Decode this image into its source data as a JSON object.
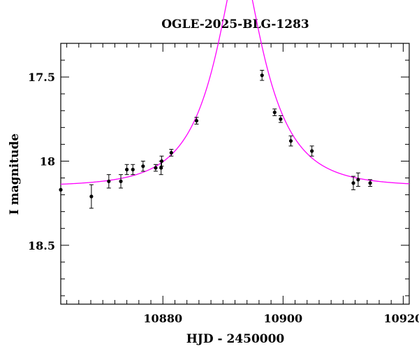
{
  "chart_data": {
    "type": "scatter",
    "title": "OGLE-2025-BLG-1283",
    "xlabel": "HJD - 2450000",
    "ylabel": "I magnitude",
    "xlim": [
      10863,
      10921
    ],
    "ylim": [
      18.85,
      17.3
    ],
    "y_inverted": true,
    "x_ticks": [
      10880,
      10900,
      10920
    ],
    "y_ticks": [
      17.5,
      18,
      18.5
    ],
    "x_tick_labels": [
      "10880",
      "10900",
      "10920"
    ],
    "y_tick_labels": [
      "17.5",
      "18",
      "18.5"
    ],
    "x_minor_step": 2,
    "y_minor_step": 0.1,
    "grid": false,
    "legend": "none",
    "series": [
      {
        "kind": "points",
        "color": "#000000",
        "points": [
          {
            "x": 10863.0,
            "y": 18.17,
            "err": 0.0
          },
          {
            "x": 10868.1,
            "y": 18.21,
            "err": 0.07
          },
          {
            "x": 10871.0,
            "y": 18.12,
            "err": 0.04
          },
          {
            "x": 10873.0,
            "y": 18.12,
            "err": 0.04
          },
          {
            "x": 10874.0,
            "y": 18.05,
            "err": 0.03
          },
          {
            "x": 10875.0,
            "y": 18.05,
            "err": 0.03
          },
          {
            "x": 10876.7,
            "y": 18.03,
            "err": 0.03
          },
          {
            "x": 10878.8,
            "y": 18.04,
            "err": 0.02
          },
          {
            "x": 10879.7,
            "y": 18.04,
            "err": 0.04
          },
          {
            "x": 10879.8,
            "y": 18.0,
            "err": 0.03
          },
          {
            "x": 10881.4,
            "y": 17.95,
            "err": 0.02
          },
          {
            "x": 10885.6,
            "y": 17.76,
            "err": 0.02
          },
          {
            "x": 10896.5,
            "y": 17.49,
            "err": 0.03
          },
          {
            "x": 10898.6,
            "y": 17.71,
            "err": 0.02
          },
          {
            "x": 10899.6,
            "y": 17.75,
            "err": 0.02
          },
          {
            "x": 10901.3,
            "y": 17.88,
            "err": 0.03
          },
          {
            "x": 10904.8,
            "y": 17.94,
            "err": 0.03
          },
          {
            "x": 10911.7,
            "y": 18.13,
            "err": 0.04
          },
          {
            "x": 10912.5,
            "y": 18.11,
            "err": 0.04
          },
          {
            "x": 10914.5,
            "y": 18.13,
            "err": 0.02
          }
        ]
      },
      {
        "kind": "model",
        "color": "#ff00ff",
        "model": {
          "t0": 10892.8,
          "u0": 0.3,
          "tE": 9.0,
          "baseline": 18.15
        }
      }
    ]
  }
}
